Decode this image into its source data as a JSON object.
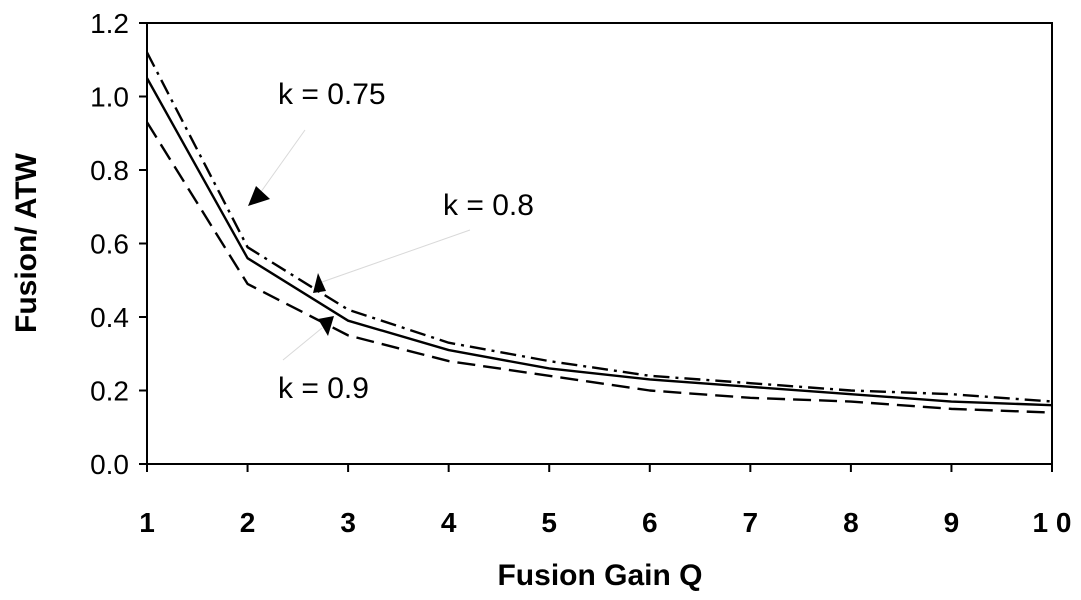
{
  "chart_data": {
    "type": "line",
    "xlabel": "Fusion Gain Q",
    "ylabel": "Fusion/ ATW",
    "xlim": [
      1,
      10
    ],
    "ylim": [
      0.0,
      1.2
    ],
    "x_ticks": [
      "1",
      "2",
      "3",
      "4",
      "5",
      "6",
      "7",
      "8",
      "9",
      "1 0"
    ],
    "y_ticks": [
      "0.0",
      "0.2",
      "0.4",
      "0.6",
      "0.8",
      "1.0",
      "1.2"
    ],
    "grid": false,
    "legend": "none",
    "x": [
      1,
      2,
      3,
      4,
      5,
      6,
      7,
      8,
      9,
      10
    ],
    "series": [
      {
        "name": "k = 0.75",
        "style": "dash-dot",
        "color": "#000000",
        "values": [
          1.12,
          0.59,
          0.42,
          0.33,
          0.28,
          0.24,
          0.22,
          0.2,
          0.19,
          0.17
        ]
      },
      {
        "name": "k = 0.8",
        "style": "solid",
        "color": "#000000",
        "values": [
          1.05,
          0.56,
          0.39,
          0.31,
          0.26,
          0.23,
          0.21,
          0.19,
          0.17,
          0.16
        ]
      },
      {
        "name": "k = 0.9",
        "style": "dashed",
        "color": "#000000",
        "values": [
          0.93,
          0.49,
          0.35,
          0.28,
          0.24,
          0.2,
          0.18,
          0.17,
          0.15,
          0.14
        ]
      }
    ],
    "annotations": [
      "k = 0.75",
      "k = 0.8",
      "k = 0.9"
    ]
  }
}
